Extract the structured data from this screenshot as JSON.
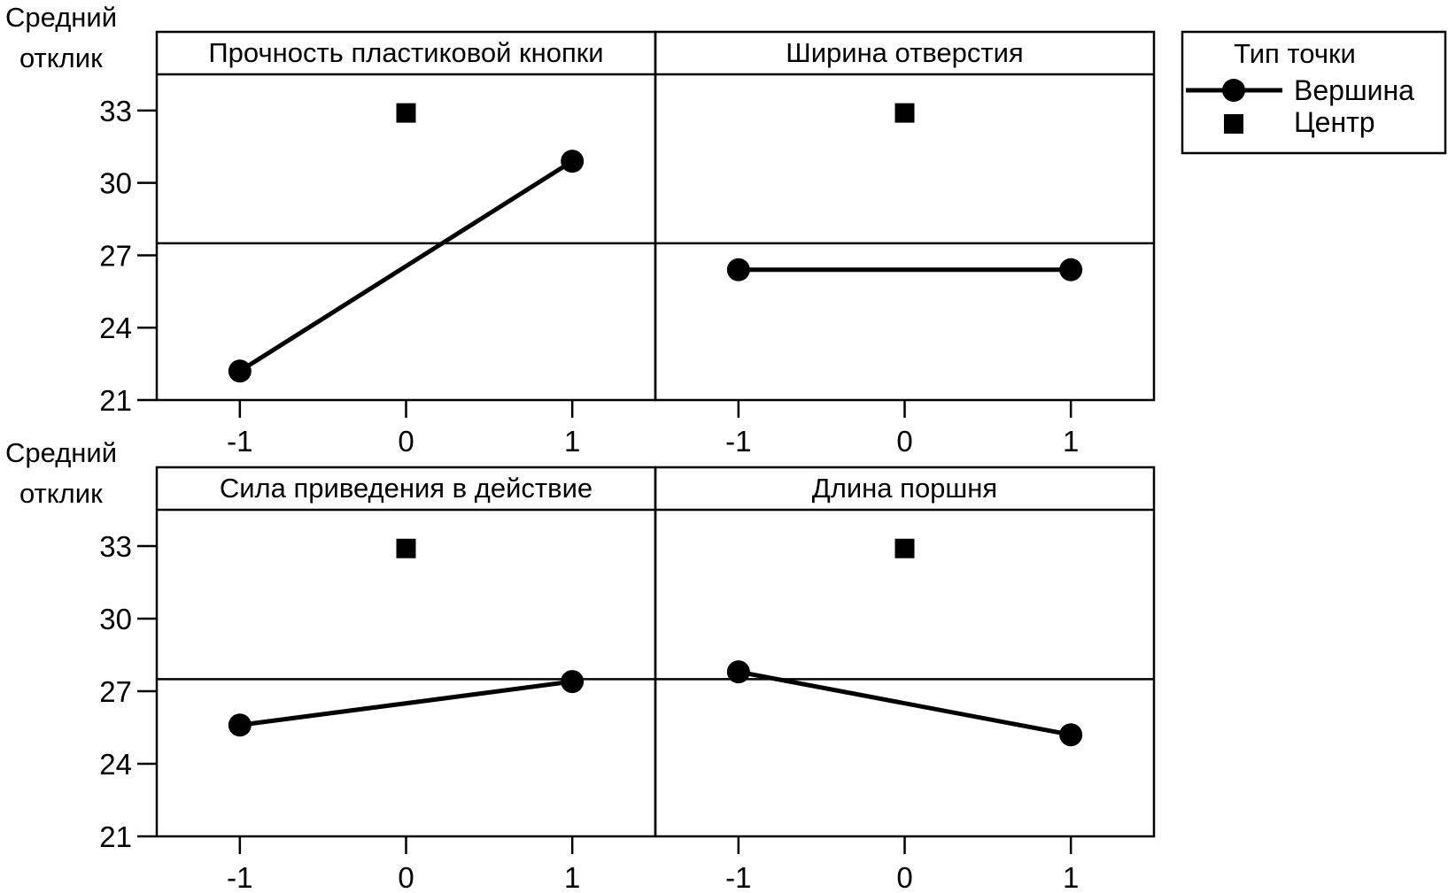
{
  "ylabel_lines": [
    "Средний",
    "отклик"
  ],
  "legend": {
    "title": "Тип точки",
    "entries": [
      "Вершина",
      "Центр"
    ]
  },
  "chart_data": {
    "type": "line",
    "description_type": "main effects plot (2x2 panels)",
    "ylabel": "Средний отклик",
    "ylim": [
      21,
      34.5
    ],
    "yticks": [
      21,
      24,
      27,
      30,
      33
    ],
    "xlim": [
      -1.5,
      1.5
    ],
    "xticks": [
      -1,
      0,
      1
    ],
    "xtick_labels": [
      "-1",
      "0",
      "1"
    ],
    "mean_line": 27.5,
    "legend_position": "top-right",
    "grid": false,
    "series_names": [
      "Вершина",
      "Центр"
    ],
    "panels": [
      {
        "title": "Прочность пластиковой кнопки",
        "corner": {
          "x": [
            -1,
            1
          ],
          "y": [
            22.2,
            30.9
          ]
        },
        "center": {
          "x": [
            0
          ],
          "y": [
            32.9
          ]
        }
      },
      {
        "title": "Ширина отверстия",
        "corner": {
          "x": [
            -1,
            1
          ],
          "y": [
            26.4,
            26.4
          ]
        },
        "center": {
          "x": [
            0
          ],
          "y": [
            32.9
          ]
        }
      },
      {
        "title": "Сила приведения в действие",
        "corner": {
          "x": [
            -1,
            1
          ],
          "y": [
            25.6,
            27.4
          ]
        },
        "center": {
          "x": [
            0
          ],
          "y": [
            32.9
          ]
        }
      },
      {
        "title": "Длина поршня",
        "corner": {
          "x": [
            -1,
            1
          ],
          "y": [
            27.8,
            25.2
          ]
        },
        "center": {
          "x": [
            0
          ],
          "y": [
            32.9
          ]
        }
      }
    ]
  }
}
